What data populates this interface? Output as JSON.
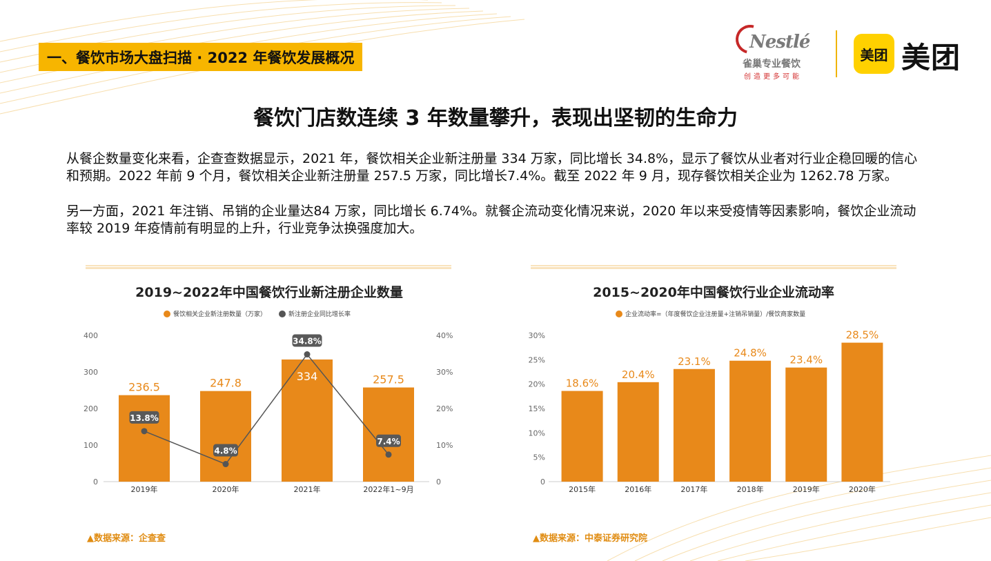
{
  "header": {
    "section_tag": "一、餐饮市场大盘扫描 · 2022 年餐饮发展概况",
    "nestle": {
      "word": "Nestlé",
      "sub": "雀巢专业餐饮",
      "slogan": "创造更多可能"
    },
    "meituan": {
      "box": "美团",
      "word": "美团"
    }
  },
  "headline": "餐饮门店数连续 3 年数量攀升，表现出坚韧的生命力",
  "paragraphs": {
    "p1": "从餐企数量变化来看，企查查数据显示，2021 年，餐饮相关企业新注册量 334 万家，同比增长 34.8%，显示了餐饮从业者对行业企稳回暖的信心和预期。2022 年前 9 个月，餐饮相关企业新注册量 257.5 万家，同比增长7.4%。截至 2022 年 9 月，现存餐饮相关企业为 1262.78 万家。",
    "p2": "另一方面，2021 年注销、吊销的企业量达84 万家，同比增长 6.74%。就餐企流动变化情况来说，2020 年以来受疫情等因素影响，餐饮企业流动率较 2019 年疫情前有明显的上升，行业竞争汰换强度加大。"
  },
  "sources": {
    "left": "▲数据来源：企查查",
    "right": "▲数据来源：中泰证券研究院"
  },
  "colors": {
    "bar": "#e8891a",
    "line": "#555555",
    "tag": "#f7b500",
    "source": "#e08c12"
  },
  "chart_data": [
    {
      "type": "bar",
      "title": "2019~2022年中国餐饮行业新注册企业数量",
      "categories": [
        "2019年",
        "2020年",
        "2021年",
        "2022年1~9月"
      ],
      "ylim": [
        0,
        400
      ],
      "yticks": [
        "0",
        "100",
        "200",
        "300",
        "400"
      ],
      "y2lim": [
        0,
        40
      ],
      "y2ticks": [
        "0",
        "10%",
        "20%",
        "30%",
        "40%"
      ],
      "series": [
        {
          "name": "餐饮相关企业新注册数量（万家）",
          "type": "bar",
          "values": [
            236.5,
            247.8,
            334,
            257.5
          ],
          "labels": [
            "236.5",
            "247.8",
            "334",
            "257.5"
          ]
        },
        {
          "name": "新注册企业同比增长率",
          "type": "line",
          "axis": "y2",
          "values": [
            13.8,
            4.8,
            34.8,
            7.4
          ],
          "labels": [
            "13.8%",
            "4.8%",
            "34.8%",
            "7.4%"
          ]
        }
      ],
      "legend": "top"
    },
    {
      "type": "bar",
      "title": "2015~2020年中国餐饮行业企业流动率",
      "categories": [
        "2015年",
        "2016年",
        "2017年",
        "2018年",
        "2019年",
        "2020年"
      ],
      "ylim": [
        0,
        30
      ],
      "yticks": [
        "0",
        "5%",
        "10%",
        "15%",
        "20%",
        "25%",
        "30%"
      ],
      "series": [
        {
          "name": "企业流动率=（年度餐饮企业注册量+注销吊销量）/餐饮商家数量",
          "values": [
            18.6,
            20.4,
            23.1,
            24.8,
            23.4,
            28.5
          ],
          "labels": [
            "18.6%",
            "20.4%",
            "23.1%",
            "24.8%",
            "23.4%",
            "28.5%"
          ]
        }
      ],
      "legend": "top"
    }
  ]
}
